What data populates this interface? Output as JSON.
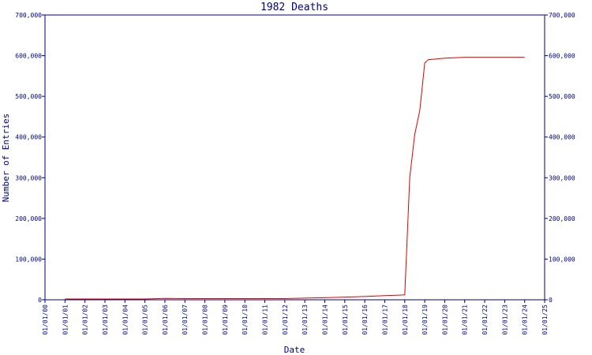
{
  "chart_data": {
    "type": "line",
    "title": "1982 Deaths",
    "x_label": "Date",
    "y_label": "Number of Entries",
    "xlim": [
      {
        "value": 0,
        "label": "01/01/00"
      },
      {
        "value": 25,
        "label": "01/01/25"
      }
    ],
    "xticks": [
      {
        "value": 0,
        "label": "01/01/00"
      },
      {
        "value": 1,
        "label": "01/01/01"
      },
      {
        "value": 2,
        "label": "01/01/02"
      },
      {
        "value": 3,
        "label": "01/01/03"
      },
      {
        "value": 4,
        "label": "01/01/04"
      },
      {
        "value": 5,
        "label": "01/01/05"
      },
      {
        "value": 6,
        "label": "01/01/06"
      },
      {
        "value": 7,
        "label": "01/01/07"
      },
      {
        "value": 8,
        "label": "01/01/08"
      },
      {
        "value": 9,
        "label": "01/01/09"
      },
      {
        "value": 10,
        "label": "01/01/10"
      },
      {
        "value": 11,
        "label": "01/01/11"
      },
      {
        "value": 12,
        "label": "01/01/12"
      },
      {
        "value": 13,
        "label": "01/01/13"
      },
      {
        "value": 14,
        "label": "01/01/14"
      },
      {
        "value": 15,
        "label": "01/01/15"
      },
      {
        "value": 16,
        "label": "01/01/16"
      },
      {
        "value": 17,
        "label": "01/01/17"
      },
      {
        "value": 18,
        "label": "01/01/18"
      },
      {
        "value": 19,
        "label": "01/01/19"
      },
      {
        "value": 20,
        "label": "01/01/20"
      },
      {
        "value": 21,
        "label": "01/01/21"
      },
      {
        "value": 22,
        "label": "01/01/22"
      },
      {
        "value": 23,
        "label": "01/01/23"
      },
      {
        "value": 24,
        "label": "01/01/24"
      },
      {
        "value": 25,
        "label": "01/01/25"
      }
    ],
    "ylim": [
      0,
      700000
    ],
    "yticks": [
      0,
      {
        "value": 100000,
        "label": "100,000"
      },
      {
        "value": 200000,
        "label": "200,000"
      },
      {
        "value": 300000,
        "label": "300,000"
      },
      {
        "value": 400000,
        "label": "400,000"
      },
      {
        "value": 500000,
        "label": "500,000"
      },
      {
        "value": 600000,
        "label": "600,000"
      },
      {
        "value": 700000,
        "label": "700,000"
      }
    ],
    "x": [
      "01/01/01",
      "01/01/02",
      "01/01/03",
      "01/01/04",
      "01/01/05",
      "01/01/06",
      "01/01/07",
      "01/01/08",
      "01/01/09",
      "01/01/10",
      "01/01/11",
      "01/01/12",
      "01/01/13",
      "01/01/14",
      "01/01/15",
      "01/01/16",
      "01/01/17",
      "01/01/18",
      "04/01/18",
      "07/01/18",
      "10/01/18",
      "01/01/19",
      "03/01/19",
      "01/01/20",
      "01/01/21",
      "01/01/22",
      "01/01/23",
      "01/01/24"
    ],
    "series": [
      {
        "name": "Deaths",
        "color": "#e00000",
        "values": [
          2000,
          2000,
          2000,
          2000,
          2000,
          3500,
          3000,
          3000,
          3000,
          3000,
          3000,
          3000,
          4000,
          5000,
          6500,
          8000,
          10000,
          12000,
          300000,
          406000,
          465000,
          582000,
          590000,
          594000,
          596000,
          596000,
          596000,
          596000
        ]
      }
    ]
  }
}
